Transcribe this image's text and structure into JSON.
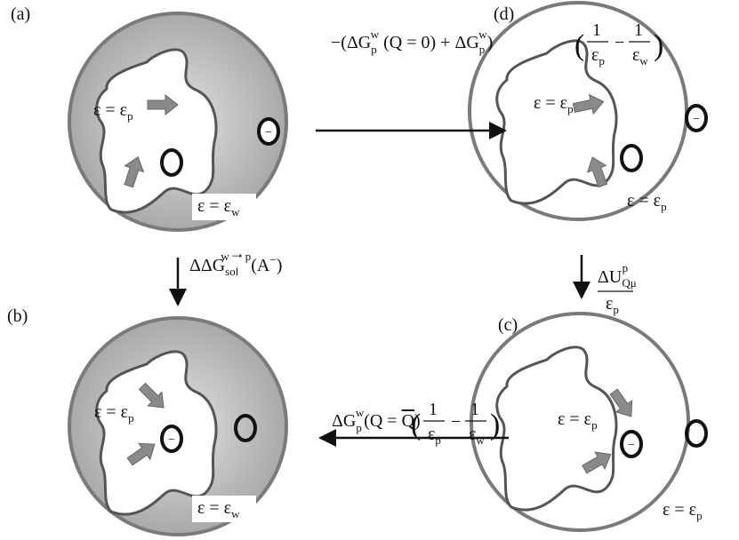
{
  "panels": [
    {
      "label": "(a)",
      "inner": {
        "text": "ε = ε",
        "sub": "p"
      },
      "outer": {
        "text": "ε = ε",
        "sub": "w"
      },
      "ion_charge": "−"
    },
    {
      "label": "(b)",
      "inner": {
        "text": "ε = ε",
        "sub": "p"
      },
      "outer": {
        "text": "ε = ε",
        "sub": "w"
      },
      "ion_charge": "−"
    },
    {
      "label": "(c)",
      "inner": {
        "text": "ε = ε",
        "sub": "p"
      },
      "outer": {
        "text": "ε = ε",
        "sub": "p"
      },
      "ion_charge": "−"
    },
    {
      "label": "(d)",
      "inner": {
        "text": "ε = ε",
        "sub": "p"
      },
      "outer": {
        "text": "ε = ε",
        "sub": "p"
      },
      "ion_charge": "−"
    }
  ],
  "transitions": {
    "a_to_d": {
      "prefix": "−(ΔG",
      "sub1": "p",
      "sup1": "w",
      "mid": " (Q = 0) + ΔG",
      "sub2": "p",
      "sup2": "w",
      "close": ")",
      "paren_open": "(",
      "frac1": {
        "num": "1",
        "den": "ε",
        "den_sub": "p"
      },
      "minus": "−",
      "frac2": {
        "num": "1",
        "den": "ε",
        "den_sub": "w"
      },
      "paren_close": ")"
    },
    "a_to_b": {
      "main": "ΔΔG",
      "sub": "sol",
      "sup": "w",
      "arrow": "→",
      "sup_end": "p",
      "tail": "(A",
      "tail_sup": "−",
      "end": ")"
    },
    "d_to_c": {
      "num": "ΔU",
      "num_sub": "Qμ",
      "num_sup": "p",
      "den": "ε",
      "den_sub": "p"
    },
    "c_to_b": {
      "main": "ΔG",
      "sub": "p",
      "sup": "w",
      "mid": "(Q = ",
      "qbar": "Q",
      "close": ")",
      "paren_open": "(",
      "frac1": {
        "num": "1",
        "den": "ε",
        "den_sub": "p"
      },
      "minus": "−",
      "frac2": {
        "num": "1",
        "den": "ε",
        "den_sub": "w"
      },
      "paren_close": ")"
    }
  }
}
